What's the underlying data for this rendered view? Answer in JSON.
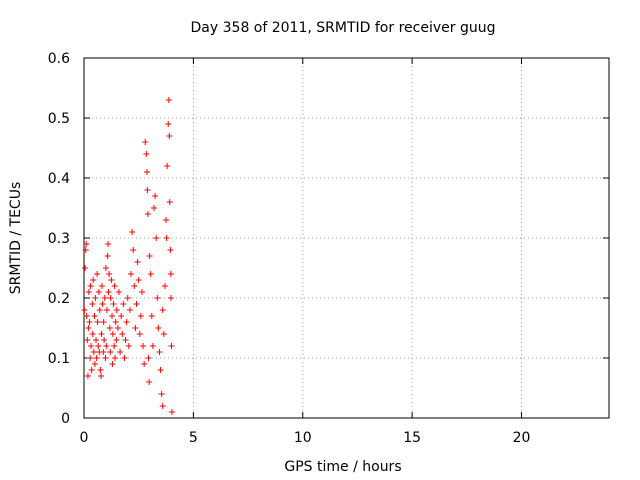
{
  "chart_data": {
    "type": "scatter",
    "title": "Day 358 of 2011, SRMTID for receiver guug",
    "xlabel": "GPS time / hours",
    "ylabel": "SRMTID / TECUs",
    "xlim": [
      0,
      24
    ],
    "ylim": [
      0,
      0.6
    ],
    "xticks": [
      0,
      5,
      10,
      15,
      20
    ],
    "yticks": [
      0,
      0.1,
      0.2,
      0.3,
      0.4,
      0.5,
      0.6
    ],
    "xtick_labels": [
      "0",
      "5",
      "10",
      "15",
      "20"
    ],
    "ytick_labels": [
      "0",
      "0.1",
      "0.2",
      "0.3",
      "0.4",
      "0.5",
      "0.6"
    ],
    "grid": true,
    "marker": "+",
    "color": "#ff0000",
    "series": [
      {
        "name": "SRMTID",
        "points": [
          [
            0.02,
            0.18
          ],
          [
            0.05,
            0.25
          ],
          [
            0.08,
            0.28
          ],
          [
            0.1,
            0.29
          ],
          [
            0.12,
            0.17
          ],
          [
            0.15,
            0.13
          ],
          [
            0.18,
            0.07
          ],
          [
            0.2,
            0.15
          ],
          [
            0.22,
            0.21
          ],
          [
            0.25,
            0.16
          ],
          [
            0.28,
            0.1
          ],
          [
            0.3,
            0.22
          ],
          [
            0.32,
            0.12
          ],
          [
            0.35,
            0.08
          ],
          [
            0.38,
            0.19
          ],
          [
            0.4,
            0.14
          ],
          [
            0.42,
            0.23
          ],
          [
            0.45,
            0.11
          ],
          [
            0.48,
            0.17
          ],
          [
            0.5,
            0.09
          ],
          [
            0.52,
            0.2
          ],
          [
            0.55,
            0.13
          ],
          [
            0.58,
            0.1
          ],
          [
            0.6,
            0.24
          ],
          [
            0.62,
            0.16
          ],
          [
            0.65,
            0.12
          ],
          [
            0.68,
            0.21
          ],
          [
            0.7,
            0.11
          ],
          [
            0.72,
            0.18
          ],
          [
            0.75,
            0.08
          ],
          [
            0.78,
            0.07
          ],
          [
            0.8,
            0.14
          ],
          [
            0.82,
            0.22
          ],
          [
            0.85,
            0.19
          ],
          [
            0.88,
            0.11
          ],
          [
            0.9,
            0.16
          ],
          [
            0.92,
            0.13
          ],
          [
            0.95,
            0.2
          ],
          [
            0.98,
            0.1
          ],
          [
            1.0,
            0.25
          ],
          [
            1.02,
            0.12
          ],
          [
            1.05,
            0.18
          ],
          [
            1.08,
            0.27
          ],
          [
            1.1,
            0.29
          ],
          [
            1.12,
            0.21
          ],
          [
            1.15,
            0.24
          ],
          [
            1.18,
            0.15
          ],
          [
            1.2,
            0.11
          ],
          [
            1.22,
            0.2
          ],
          [
            1.25,
            0.23
          ],
          [
            1.28,
            0.17
          ],
          [
            1.3,
            0.09
          ],
          [
            1.32,
            0.14
          ],
          [
            1.35,
            0.19
          ],
          [
            1.38,
            0.12
          ],
          [
            1.4,
            0.22
          ],
          [
            1.42,
            0.1
          ],
          [
            1.45,
            0.16
          ],
          [
            1.48,
            0.13
          ],
          [
            1.5,
            0.18
          ],
          [
            1.55,
            0.15
          ],
          [
            1.6,
            0.21
          ],
          [
            1.65,
            0.11
          ],
          [
            1.7,
            0.17
          ],
          [
            1.75,
            0.14
          ],
          [
            1.8,
            0.19
          ],
          [
            1.85,
            0.1
          ],
          [
            1.9,
            0.13
          ],
          [
            1.95,
            0.16
          ],
          [
            2.0,
            0.2
          ],
          [
            2.05,
            0.12
          ],
          [
            2.1,
            0.18
          ],
          [
            2.15,
            0.24
          ],
          [
            2.2,
            0.31
          ],
          [
            2.25,
            0.28
          ],
          [
            2.3,
            0.22
          ],
          [
            2.35,
            0.15
          ],
          [
            2.4,
            0.19
          ],
          [
            2.45,
            0.26
          ],
          [
            2.5,
            0.23
          ],
          [
            2.55,
            0.14
          ],
          [
            2.6,
            0.17
          ],
          [
            2.65,
            0.21
          ],
          [
            2.7,
            0.12
          ],
          [
            2.75,
            0.09
          ],
          [
            2.8,
            0.46
          ],
          [
            2.85,
            0.44
          ],
          [
            2.9,
            0.38
          ],
          [
            2.92,
            0.34
          ],
          [
            2.95,
            0.1
          ],
          [
            3.0,
            0.27
          ],
          [
            3.05,
            0.24
          ],
          [
            3.1,
            0.17
          ],
          [
            3.15,
            0.12
          ],
          [
            3.2,
            0.35
          ],
          [
            3.25,
            0.37
          ],
          [
            3.3,
            0.3
          ],
          [
            3.35,
            0.2
          ],
          [
            3.4,
            0.15
          ],
          [
            3.45,
            0.11
          ],
          [
            3.5,
            0.08
          ],
          [
            3.55,
            0.04
          ],
          [
            3.6,
            0.02
          ],
          [
            3.65,
            0.14
          ],
          [
            3.7,
            0.22
          ],
          [
            3.75,
            0.33
          ],
          [
            3.8,
            0.42
          ],
          [
            3.85,
            0.49
          ],
          [
            3.88,
            0.53
          ],
          [
            3.9,
            0.47
          ],
          [
            3.92,
            0.36
          ],
          [
            3.95,
            0.28
          ],
          [
            3.98,
            0.2
          ],
          [
            4.0,
            0.12
          ],
          [
            4.02,
            0.01
          ],
          [
            3.97,
            0.24
          ],
          [
            3.78,
            0.3
          ],
          [
            3.6,
            0.18
          ],
          [
            2.88,
            0.41
          ],
          [
            2.98,
            0.06
          ]
        ]
      }
    ]
  }
}
